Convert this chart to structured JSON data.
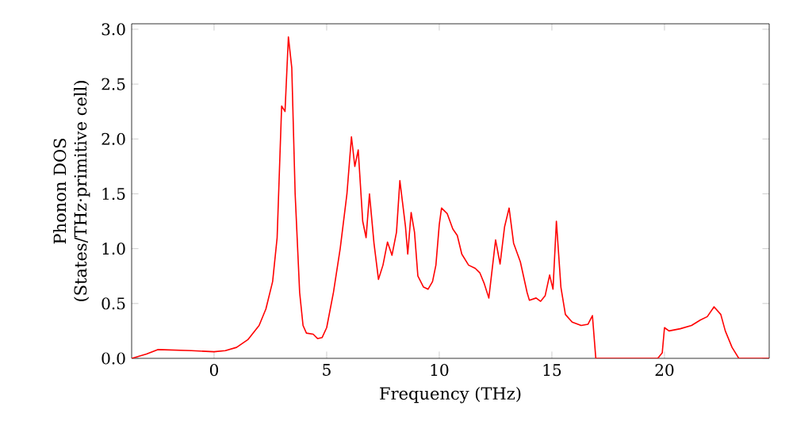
{
  "chart_data": {
    "type": "line",
    "xlabel": "Frequency (THz)",
    "ylabel": "Phonon DOS\n(States/THz·primitive cell)",
    "xlim": [
      -3.66,
      24.65
    ],
    "ylim": [
      0,
      3.05
    ],
    "xticks": [
      0,
      5,
      10,
      15,
      20
    ],
    "yticks": [
      {
        "value": 0,
        "label": "0.0"
      },
      0.5,
      {
        "value": 1,
        "label": "1.0"
      },
      1.5,
      {
        "value": 2,
        "label": "2.0"
      },
      2.5,
      {
        "value": 3,
        "label": "3.0"
      }
    ],
    "grid": false,
    "series": [
      {
        "color": "#ff0000",
        "x": [
          -3.66,
          -3,
          -2.5,
          -1,
          0,
          0.5,
          1,
          1.5,
          2,
          2.3,
          2.6,
          2.8,
          3.0,
          3.15,
          3.3,
          3.45,
          3.6,
          3.8,
          3.95,
          4.1,
          4.4,
          4.6,
          4.8,
          5.0,
          5.3,
          5.6,
          5.9,
          6.1,
          6.25,
          6.4,
          6.6,
          6.75,
          6.9,
          7.1,
          7.3,
          7.5,
          7.7,
          7.9,
          8.1,
          8.25,
          8.5,
          8.6,
          8.75,
          8.9,
          9.05,
          9.3,
          9.5,
          9.7,
          9.85,
          10.0,
          10.1,
          10.35,
          10.6,
          10.8,
          11.0,
          11.3,
          11.6,
          11.8,
          12.0,
          12.2,
          12.5,
          12.7,
          12.9,
          13.1,
          13.3,
          13.6,
          13.9,
          14.0,
          14.3,
          14.5,
          14.7,
          14.9,
          15.05,
          15.2,
          15.4,
          15.6,
          15.9,
          16.3,
          16.6,
          16.8,
          16.95,
          19.7,
          19.9,
          20.0,
          20.2,
          20.7,
          21.2,
          21.6,
          21.9,
          22.2,
          22.5,
          22.7,
          23.0,
          23.3,
          24.65
        ],
        "values": [
          0,
          0.04,
          0.08,
          0.07,
          0.06,
          0.07,
          0.1,
          0.17,
          0.3,
          0.45,
          0.7,
          1.1,
          2.3,
          2.25,
          2.93,
          2.65,
          1.5,
          0.6,
          0.3,
          0.23,
          0.22,
          0.18,
          0.19,
          0.28,
          0.6,
          1.0,
          1.5,
          2.02,
          1.75,
          1.9,
          1.25,
          1.1,
          1.5,
          1.05,
          0.72,
          0.85,
          1.06,
          0.94,
          1.15,
          1.62,
          1.2,
          0.95,
          1.33,
          1.15,
          0.75,
          0.65,
          0.63,
          0.7,
          0.85,
          1.22,
          1.37,
          1.32,
          1.18,
          1.12,
          0.95,
          0.85,
          0.82,
          0.78,
          0.68,
          0.55,
          1.08,
          0.86,
          1.2,
          1.37,
          1.05,
          0.88,
          0.6,
          0.53,
          0.55,
          0.52,
          0.57,
          0.76,
          0.63,
          1.25,
          0.65,
          0.4,
          0.33,
          0.3,
          0.31,
          0.39,
          0,
          0,
          0.05,
          0.28,
          0.25,
          0.27,
          0.3,
          0.35,
          0.38,
          0.47,
          0.4,
          0.25,
          0.1,
          0,
          0
        ]
      }
    ]
  }
}
